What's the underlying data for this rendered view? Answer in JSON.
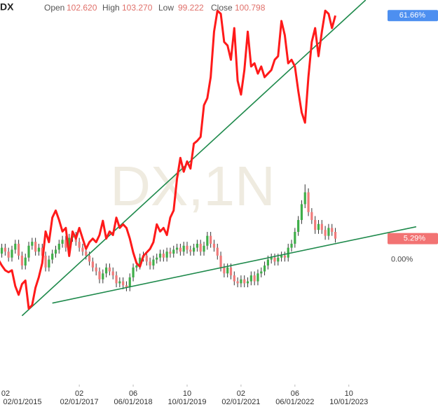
{
  "chart_data": {
    "type": "candlestick",
    "title": "DX",
    "ohlc_header": [
      {
        "label": "Open",
        "value": "102.620"
      },
      {
        "label": "High",
        "value": "103.270"
      },
      {
        "label": "Low",
        "value": "99.222"
      },
      {
        "label": "Close",
        "value": "100.798"
      }
    ],
    "watermark": "DX,1N",
    "x": [
      "2015-02-01",
      "2015-03-01",
      "2015-04-01",
      "2015-05-01",
      "2015-06-01",
      "2015-07-01",
      "2015-08-01",
      "2015-09-01",
      "2015-10-01",
      "2015-11-01",
      "2015-12-01",
      "2016-01-01",
      "2016-02-01",
      "2016-03-01",
      "2016-04-01",
      "2016-05-01",
      "2016-06-01",
      "2016-07-01",
      "2016-08-01",
      "2016-09-01",
      "2016-10-01",
      "2016-11-01",
      "2016-12-01",
      "2017-01-01",
      "2017-02-01",
      "2017-03-01",
      "2017-04-01",
      "2017-05-01",
      "2017-06-01",
      "2017-07-01",
      "2017-08-01",
      "2017-09-01",
      "2017-10-01",
      "2017-11-01",
      "2017-12-01",
      "2018-01-01",
      "2018-02-01",
      "2018-03-01",
      "2018-04-01",
      "2018-05-01",
      "2018-06-01",
      "2018-07-01",
      "2018-08-01",
      "2018-09-01",
      "2018-10-01",
      "2018-11-01",
      "2018-12-01",
      "2019-01-01",
      "2019-02-01",
      "2019-03-01",
      "2019-04-01",
      "2019-05-01",
      "2019-06-01",
      "2019-07-01",
      "2019-08-01",
      "2019-09-01",
      "2019-10-01",
      "2019-11-01",
      "2019-12-01",
      "2020-01-01",
      "2020-02-01",
      "2020-03-01",
      "2020-04-01",
      "2020-05-01",
      "2020-06-01",
      "2020-07-01",
      "2020-08-01",
      "2020-09-01",
      "2020-10-01",
      "2020-11-01",
      "2020-12-01",
      "2021-01-01",
      "2021-02-01",
      "2021-03-01",
      "2021-04-01",
      "2021-05-01",
      "2021-06-01",
      "2021-07-01",
      "2021-08-01",
      "2021-09-01",
      "2021-10-01",
      "2021-11-01",
      "2021-12-01",
      "2022-01-01",
      "2022-02-01",
      "2022-03-01",
      "2022-04-01",
      "2022-05-01",
      "2022-06-01",
      "2022-07-01",
      "2022-08-01",
      "2022-09-01",
      "2022-10-01",
      "2022-11-01",
      "2022-12-01",
      "2023-01-01",
      "2023-02-01",
      "2023-03-01",
      "2023-04-01",
      "2023-05-01",
      "2023-06-01"
    ],
    "xlim": [
      "2015-02-15",
      "2025-12-15"
    ],
    "xticks": [
      {
        "value": "2015-02-01",
        "label": "02/01/2015",
        "short": "02"
      },
      {
        "value": "2017-02-01",
        "label": "02/01/2017",
        "short": "02"
      },
      {
        "value": "2018-06-01",
        "label": "06/01/2018",
        "short": "06"
      },
      {
        "value": "2019-10-01",
        "label": "10/01/2019",
        "short": "10"
      },
      {
        "value": "2021-02-01",
        "label": "02/01/2021",
        "short": "02"
      },
      {
        "value": "2022-06-01",
        "label": "06/01/2022",
        "short": "06"
      },
      {
        "value": "2023-10-01",
        "label": "10/01/2023",
        "short": "10"
      }
    ],
    "ylim": [
      -30,
      65.6
    ],
    "candles": {
      "up_color": "#3fae49",
      "down_color": "#f07a7a",
      "wick_color": "#333333",
      "open": [
        0,
        1.5,
        3.0,
        2.0,
        0.5,
        2.5,
        4.0,
        1.0,
        -1.5,
        0.5,
        3.5,
        4.5,
        2.0,
        3.0,
        1.0,
        -2.0,
        0.0,
        1.5,
        2.5,
        4.0,
        5.0,
        3.0,
        5.5,
        6.0,
        4.5,
        3.0,
        2.0,
        1.0,
        -0.5,
        -2.0,
        -3.0,
        -5.0,
        -3.5,
        -2.0,
        -3.0,
        -4.0,
        -6.0,
        -5.5,
        -6.5,
        -7.0,
        -4.5,
        -2.0,
        -1.5,
        0.5,
        1.0,
        -0.5,
        -1.5,
        0.0,
        0.5,
        1.5,
        0.5,
        2.0,
        1.5,
        2.5,
        3.0,
        2.0,
        3.5,
        2.5,
        2.0,
        3.0,
        4.0,
        2.0,
        3.5,
        6.0,
        4.0,
        3.0,
        1.0,
        -2.0,
        -3.5,
        -2.0,
        -4.0,
        -5.5,
        -6.0,
        -5.0,
        -6.0,
        -5.5,
        -4.0,
        -5.5,
        -3.5,
        -3.0,
        -1.5,
        0.0,
        0.5,
        -0.5,
        0.5,
        1.0,
        0.5,
        3.0,
        4.0,
        7.0,
        10.0,
        14.0,
        17.0,
        12.0,
        10.0,
        7.5,
        9.0,
        7.5,
        6.0,
        8.0,
        7.0
      ],
      "high": [
        2.5,
        4,
        4,
        3,
        3.5,
        5,
        5,
        2,
        1.5,
        4.5,
        5.5,
        5.5,
        4,
        4,
        2,
        1,
        2.5,
        3.5,
        5,
        6,
        6,
        6.5,
        7,
        7,
        5.5,
        4,
        3,
        2,
        0.5,
        -1,
        -2,
        -2.5,
        -1,
        -1,
        -2,
        -3,
        -4.5,
        -4.5,
        -5.5,
        -3.5,
        -1,
        -0.5,
        1.5,
        2,
        2,
        0.5,
        1,
        1.5,
        2.5,
        2.5,
        3,
        3,
        3.5,
        4,
        4,
        4.5,
        4.5,
        3.5,
        4,
        5,
        5,
        4.5,
        7,
        7,
        5,
        4,
        2,
        -1,
        -1,
        -1,
        -3,
        -4.5,
        -4,
        -4,
        -4.5,
        -3,
        -3,
        -2.5,
        -2,
        -0.5,
        1,
        1.5,
        1.5,
        1.5,
        2,
        2,
        4,
        5,
        8,
        11,
        15,
        19,
        18,
        13,
        11,
        10,
        10,
        8.5,
        9,
        9,
        8
      ],
      "low": [
        -1,
        0.5,
        1,
        -0.5,
        -0.5,
        1.5,
        0,
        -2.5,
        -2.5,
        -0.5,
        2.5,
        1,
        1,
        0,
        -3,
        -3,
        -1,
        0.5,
        1.5,
        3,
        2,
        2,
        4.5,
        3.5,
        2,
        1,
        0,
        -1.5,
        -3,
        -4,
        -6,
        -6,
        -4.5,
        -4,
        -5,
        -7,
        -7,
        -7.5,
        -8,
        -8,
        -5.5,
        -3,
        -2.5,
        -0.5,
        -1.5,
        -2.5,
        -2.5,
        -1,
        -0.5,
        -0.5,
        -0.5,
        0.5,
        0.5,
        1.5,
        1,
        1,
        1.5,
        1,
        1,
        2,
        1,
        1,
        2.5,
        3,
        2,
        0,
        -3,
        -4.5,
        -4.5,
        -5,
        -6.5,
        -7,
        -7,
        -7,
        -7,
        -6.5,
        -6.5,
        -6.5,
        -4.5,
        -4,
        -2.5,
        -1,
        -1.5,
        -1.5,
        -0.5,
        -0.5,
        -0.5,
        2,
        3,
        6,
        9,
        13,
        11,
        9,
        6.5,
        6.5,
        6.5,
        5,
        5,
        6,
        4.29
      ],
      "close": [
        1.5,
        3.0,
        2.0,
        0.5,
        2.5,
        4.0,
        1.0,
        -1.5,
        0.5,
        3.5,
        4.5,
        2.0,
        3.0,
        1.0,
        -2.0,
        0.0,
        1.5,
        2.5,
        4.0,
        5.0,
        3.0,
        5.5,
        6.0,
        4.5,
        3.0,
        2.0,
        1.0,
        -0.5,
        -2.0,
        -3.0,
        -5.0,
        -3.5,
        -2.0,
        -3.0,
        -4.0,
        -6.0,
        -5.5,
        -6.5,
        -7.0,
        -4.5,
        -2.0,
        -1.5,
        0.5,
        1.0,
        -0.5,
        -1.5,
        0.0,
        0.5,
        1.5,
        0.5,
        2.0,
        1.5,
        2.5,
        3.0,
        2.0,
        3.5,
        2.5,
        2.0,
        3.0,
        4.0,
        2.0,
        3.5,
        6.0,
        4.0,
        3.0,
        1.0,
        -2.0,
        -3.5,
        -2.0,
        -4.0,
        -5.5,
        -6.0,
        -5.0,
        -6.0,
        -5.5,
        -4.0,
        -5.5,
        -3.5,
        -3.0,
        -1.5,
        0.0,
        0.5,
        -0.5,
        0.5,
        1.0,
        0.5,
        3.0,
        4.0,
        7.0,
        10.0,
        14.0,
        17.0,
        12.0,
        10.0,
        7.5,
        9.0,
        7.5,
        6.0,
        8.0,
        7.0,
        5.29
      ]
    },
    "series": [
      {
        "type": "line",
        "color": "#ff1a1a",
        "values": [
          0,
          -1.5,
          -2.7,
          -3.2,
          -2.7,
          -6.7,
          -8.9,
          -6.2,
          -5.3,
          -12.4,
          -11.5,
          -7.1,
          -4.4,
          -0.9,
          7.1,
          4.4,
          10.6,
          12.4,
          10.0,
          7.1,
          8.0,
          0.9,
          7.1,
          5.3,
          8.0,
          5.3,
          2.7,
          4.4,
          5.3,
          4.4,
          6.2,
          9.8,
          5.3,
          7.1,
          6.2,
          10.6,
          8.0,
          8.9,
          8.0,
          5.3,
          1.8,
          -0.9,
          -1.8,
          0.9,
          1.8,
          2.7,
          4.4,
          8.9,
          7.1,
          8.0,
          6.2,
          10.6,
          12.4,
          20.4,
          25.7,
          22.2,
          24.8,
          23.0,
          29.3,
          30.0,
          31.0,
          39.0,
          40.8,
          46.1,
          57.6,
          62.9,
          62.1,
          55.0,
          54.1,
          50.5,
          58.5,
          45.2,
          41.7,
          47.9,
          57.6,
          48.8,
          49.6,
          47.0,
          48.8,
          46.1,
          47.0,
          47.9,
          50.5,
          51.4,
          60.3,
          56.7,
          49.6,
          50.5,
          48.8,
          42.6,
          37.2,
          34.6,
          46.1,
          55.0,
          58.5,
          51.4,
          57.6,
          62.9,
          62.1,
          58.5,
          61.66
        ]
      }
    ],
    "trendlines": [
      {
        "color": "#1f8a4c",
        "x": [
          "2015-09-01",
          "2024-03-01"
        ],
        "values": [
          -14.2,
          65.6
        ]
      },
      {
        "color": "#1f8a4c",
        "x": [
          "2016-06-01",
          "2025-06-01"
        ],
        "values": [
          -11.0,
          8.3
        ]
      }
    ],
    "right_labels": [
      {
        "value": 61.66,
        "label": "61.66%",
        "color": "#4d8ff0"
      },
      {
        "value": 5.29,
        "label": "5.29%",
        "color": "#f27373"
      },
      {
        "value": 0,
        "label": "0.00%"
      }
    ]
  }
}
